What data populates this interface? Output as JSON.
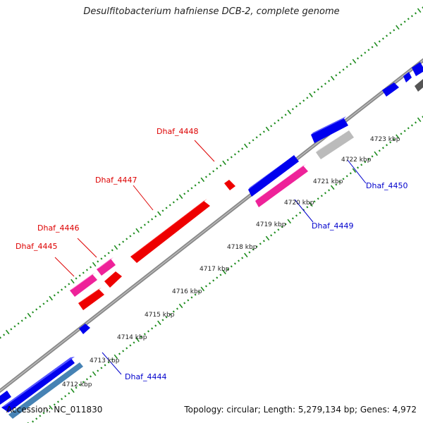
{
  "title": "Desulfitobacterium hafniense DCB-2, complete genome",
  "footer": {
    "accession": "Accession: NC_011830",
    "summary": "Topology: circular; Length: 5,279,134 bp; Genes: 4,972"
  },
  "colors": {
    "forward_cds": "#0000ee",
    "reverse_cds": "#ee0000",
    "forward_gene_pink": "#ee2299",
    "reverse_gene_pink": "#ee2299",
    "pseudo_grey": "#bbbbbb",
    "dark_grey": "#555555",
    "steel_blue": "#4682b4",
    "backbone": "#888888",
    "tick": "#1e8c1e",
    "label_forward": "#0000cc",
    "label_reverse": "#dd0000"
  },
  "scale_labels": [
    "4712 kbp",
    "4713 kbp",
    "4714 kbp",
    "4715 kbp",
    "4716 kbp",
    "4717 kbp",
    "4718 kbp",
    "4719 kbp",
    "4720 kbp",
    "4721 kbp",
    "4722 kbp",
    "4723 kbp"
  ],
  "gene_labels": {
    "reverse": [
      "Dhaf_4445",
      "Dhaf_4446",
      "Dhaf_4447",
      "Dhaf_4448"
    ],
    "forward": [
      "Dhaf_4444",
      "Dhaf_4449",
      "Dhaf_4450"
    ]
  }
}
